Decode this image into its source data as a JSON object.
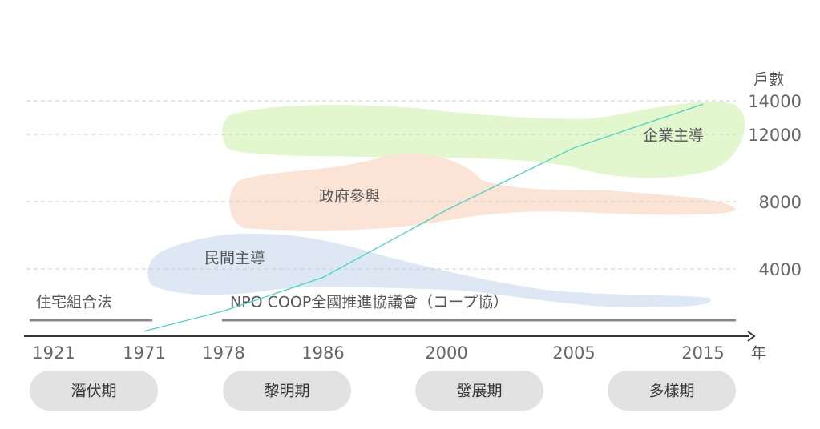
{
  "chart_data": {
    "type": "line",
    "y_label": "戶數",
    "x_label": "年",
    "categories": [
      "1921",
      "1971",
      "1978",
      "1986",
      "2000",
      "2005",
      "2015"
    ],
    "values": [
      null,
      300,
      1500,
      3500,
      7500,
      11200,
      13800
    ],
    "color": "#48d3c4",
    "ylim": [
      0,
      14000
    ],
    "yticks": [
      4000,
      8000,
      12000,
      14000
    ],
    "grid": true,
    "regions": [
      "企業主導",
      "政府參與",
      "民間主導"
    ],
    "annotations": [
      "住宅組合法",
      "NPO COOP全國推進協議會（コープ協）"
    ],
    "periods": [
      "潛伏期",
      "黎明期",
      "發展期",
      "多樣期"
    ]
  }
}
